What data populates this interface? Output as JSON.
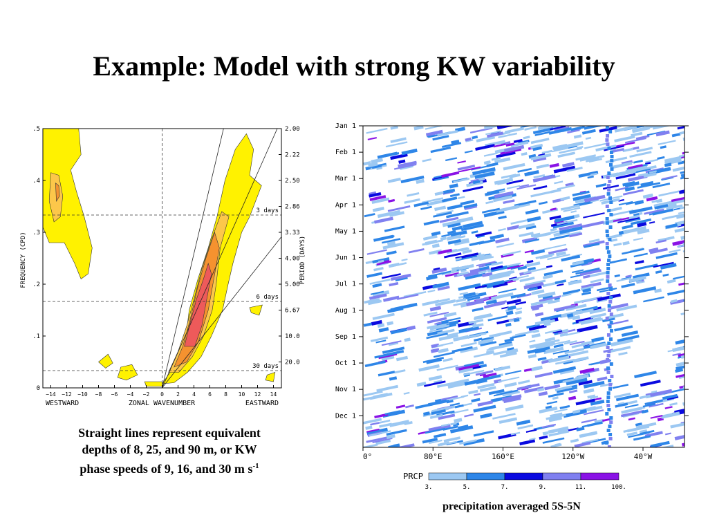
{
  "slide": {
    "title": "Example: Model with strong KW variability",
    "caption": {
      "line1": "Straight lines represent equivalent",
      "line2": "depths of  8, 25, and 90 m, or KW",
      "line3": "phase speeds of  9, 16, and 30 m s",
      "sup": "-1"
    },
    "precip_caption": "precipitation averaged 5S-5N"
  },
  "chart_data": [
    {
      "type": "heatmap",
      "title": "",
      "xlabel_left": "WESTWARD",
      "xlabel": "ZONAL WAVENUMBER",
      "xlabel_right": "EASTWARD",
      "ylabel": "FREQUENCY (CPD)",
      "ylabel_right": "PERIOD (DAYS)",
      "xlim": [
        -15,
        15
      ],
      "ylim": [
        0,
        0.5
      ],
      "x_ticks": [
        -14,
        -12,
        -10,
        -8,
        -6,
        -4,
        -2,
        0,
        2,
        4,
        6,
        8,
        10,
        12,
        14
      ],
      "y_ticks": [
        {
          "value": 0,
          "label": "0"
        },
        {
          "value": 0.1,
          "label": ".1"
        },
        {
          "value": 0.2,
          "label": ".2"
        },
        {
          "value": 0.3,
          "label": ".3"
        },
        {
          "value": 0.4,
          "label": ".4"
        },
        {
          "value": 0.5,
          "label": ".5"
        }
      ],
      "period_ticks": [
        {
          "freq": 0.5,
          "label": "2.00"
        },
        {
          "freq": 0.45,
          "label": "2.22"
        },
        {
          "freq": 0.4,
          "label": "2.50"
        },
        {
          "freq": 0.35,
          "label": "2.86"
        },
        {
          "freq": 0.3,
          "label": "3.33"
        },
        {
          "freq": 0.25,
          "label": "4.00"
        },
        {
          "freq": 0.2,
          "label": "5.00"
        },
        {
          "freq": 0.15,
          "label": "6.67"
        },
        {
          "freq": 0.1,
          "label": "10.0"
        },
        {
          "freq": 0.05,
          "label": "20.0"
        }
      ],
      "period_lines": [
        {
          "freq": 0.3333,
          "label": "3 days"
        },
        {
          "freq": 0.1667,
          "label": "6 days"
        },
        {
          "freq": 0.0333,
          "label": "30 days"
        }
      ],
      "dispersion_curves": [
        {
          "equivalent_depth_m": 8,
          "phase_speed_ms": 9
        },
        {
          "equivalent_depth_m": 25,
          "phase_speed_ms": 16
        },
        {
          "equivalent_depth_m": 90,
          "phase_speed_ms": 30
        }
      ],
      "fill_colors": [
        "#fff200",
        "#fcc74a",
        "#f5922f",
        "#ee5a5a"
      ]
    },
    {
      "type": "heatmap",
      "title": "",
      "xlabel": "",
      "x_ticks": [
        "0°",
        "80°E",
        "160°E",
        "120°W",
        "40°W"
      ],
      "y_ticks": [
        "Jan 1",
        "Feb 1",
        "Mar 1",
        "Apr 1",
        "May 1",
        "Jun 1",
        "Jul 1",
        "Aug 1",
        "Sep 1",
        "Oct 1",
        "Nov 1",
        "Dec 1"
      ],
      "colorbar": {
        "label": "PRCP",
        "levels": [
          "3.",
          "5.",
          "7.",
          "9.",
          "11.",
          "100."
        ],
        "colors": [
          "#9cc8f2",
          "#2e86e8",
          "#0a0ae0",
          "#8080f0",
          "#8a12e6"
        ]
      }
    }
  ]
}
